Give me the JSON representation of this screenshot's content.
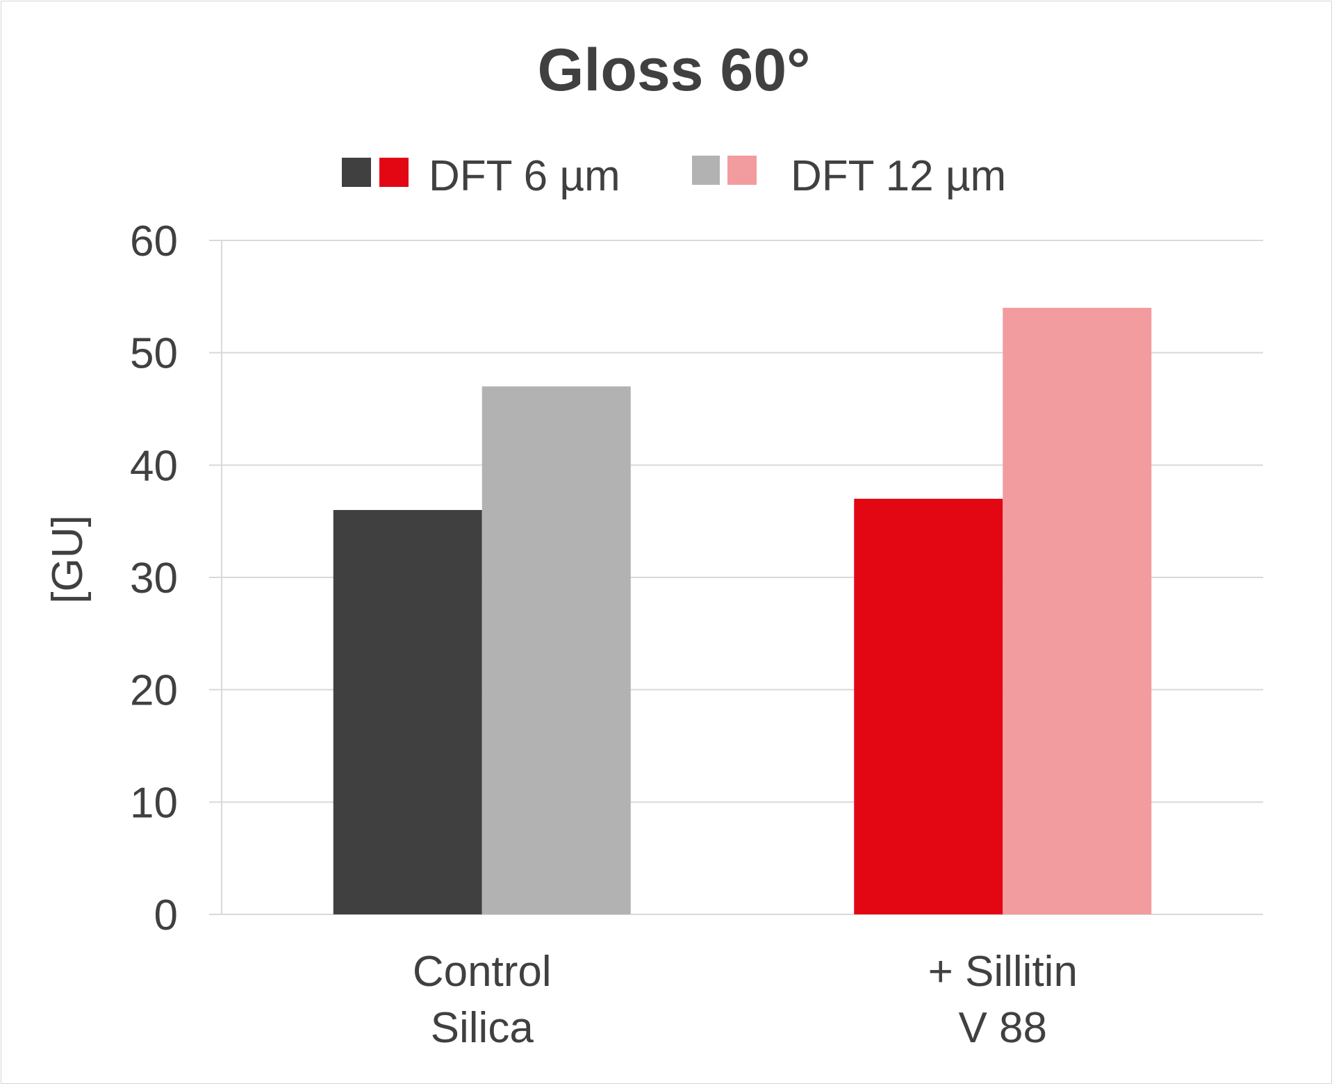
{
  "chart_data": {
    "type": "bar",
    "title": "Gloss 60°",
    "ylabel": "[GU]",
    "xlabel": "",
    "ylim": [
      0,
      60
    ],
    "yticks": [
      "0",
      "10",
      "20",
      "30",
      "40",
      "50",
      "60"
    ],
    "grid": true,
    "legend_position": "top-center",
    "categories": [
      {
        "lines": [
          "Control",
          "Silica"
        ]
      },
      {
        "lines": [
          "+ Sillitin",
          "V 88"
        ]
      }
    ],
    "series": [
      {
        "name": "DFT 6 µm",
        "values": [
          36,
          37
        ],
        "colors": [
          "#404040",
          "#e30613"
        ]
      },
      {
        "name": "DFT 12 µm",
        "values": [
          47,
          54
        ],
        "colors": [
          "#b2b2b2",
          "#f29ca0"
        ]
      }
    ]
  }
}
